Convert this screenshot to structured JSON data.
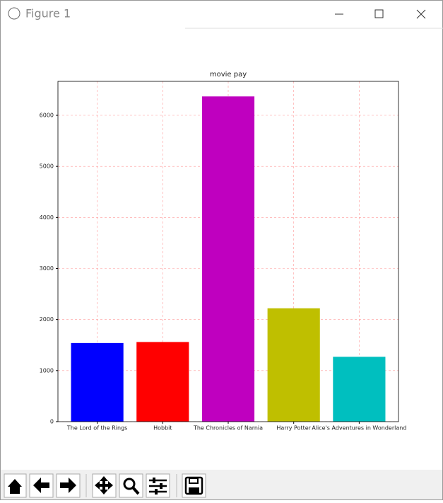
{
  "window": {
    "title": "Figure 1"
  },
  "chart_data": {
    "type": "bar",
    "title": "movie pay",
    "categories": [
      "The Lord of the Rings",
      "Hobbit",
      "The Chronicles of Narnia",
      "Harry Potter",
      "Alice's Adventures in Wonderland"
    ],
    "values": [
      1540,
      1560,
      6370,
      2220,
      1270
    ],
    "colors": [
      "#0000ff",
      "#ff0000",
      "#bf00bf",
      "#bfbf00",
      "#00bfbf"
    ],
    "ylim": [
      0,
      6665
    ],
    "yticks": [
      0,
      1000,
      2000,
      3000,
      4000,
      5000,
      6000
    ],
    "grid": true,
    "grid_color": "#ff9999"
  }
}
